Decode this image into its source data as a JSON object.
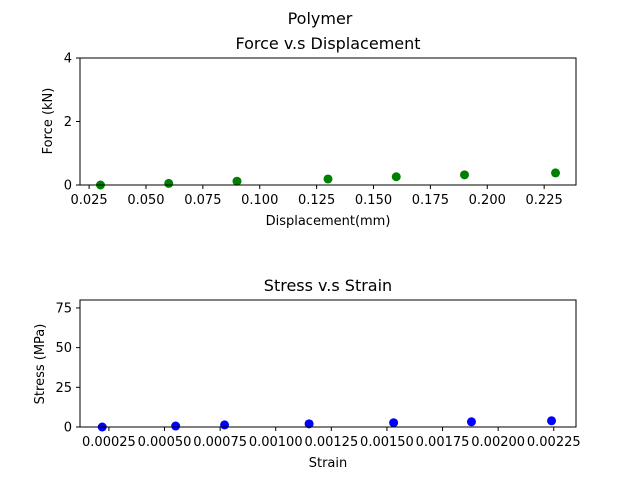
{
  "figure": {
    "suptitle": "Polymer"
  },
  "chart_data": [
    {
      "type": "scatter",
      "title": "Force v.s Displacement",
      "xlabel": "Displacement(mm)",
      "ylabel": "Force (kN)",
      "xlim": [
        0.021,
        0.239
      ],
      "ylim": [
        0,
        4
      ],
      "xticks": [
        0.025,
        0.05,
        0.075,
        0.1,
        0.125,
        0.15,
        0.175,
        0.2,
        0.225
      ],
      "xtick_labels": [
        "0.025",
        "0.050",
        "0.075",
        "0.100",
        "0.125",
        "0.150",
        "0.175",
        "0.200",
        "0.225"
      ],
      "yticks": [
        0,
        2,
        4
      ],
      "ytick_labels": [
        "0",
        "2",
        "4"
      ],
      "color": "#008000",
      "grid": false,
      "series": [
        {
          "x": [
            0.03,
            0.06,
            0.09,
            0.13,
            0.16,
            0.19,
            0.23
          ],
          "y": [
            0.0,
            0.05,
            0.12,
            0.19,
            0.26,
            0.32,
            0.38
          ]
        }
      ]
    },
    {
      "type": "scatter",
      "title": "Stress v.s Strain",
      "xlabel": "Strain",
      "ylabel": "Stress (MPa)",
      "xlim": [
        0.00012,
        0.00235
      ],
      "ylim": [
        0,
        80
      ],
      "xticks": [
        0.00025,
        0.0005,
        0.00075,
        0.001,
        0.00125,
        0.0015,
        0.00175,
        0.002,
        0.00225
      ],
      "xtick_labels": [
        "0.00025",
        "0.00050",
        "0.00075",
        "0.00100",
        "0.00125",
        "0.00150",
        "0.00175",
        "0.00200",
        "0.00225"
      ],
      "yticks": [
        0,
        25,
        50,
        75
      ],
      "ytick_labels": [
        "0",
        "25",
        "50",
        "75"
      ],
      "color": "#0000ff",
      "grid": false,
      "series": [
        {
          "x": [
            0.00022,
            0.00055,
            0.00077,
            0.00115,
            0.00153,
            0.00188,
            0.00224
          ],
          "y": [
            0.0,
            0.6,
            1.3,
            2.0,
            2.7,
            3.3,
            3.9
          ]
        }
      ]
    }
  ]
}
